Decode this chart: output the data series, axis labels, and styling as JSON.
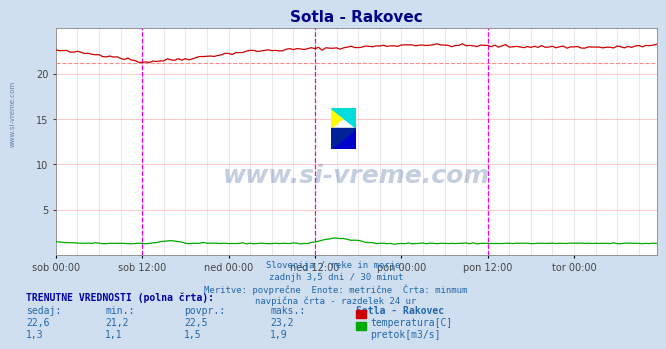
{
  "title": "Sotla - Rakovec",
  "bg_color": "#d0dff0",
  "plot_bg_color": "#ffffff",
  "x_labels": [
    "sob 00:00",
    "sob 12:00",
    "ned 00:00",
    "ned 12:00",
    "pon 00:00",
    "pon 12:00",
    "tor 00:00"
  ],
  "ylim": [
    0,
    25
  ],
  "yticks": [
    5,
    10,
    15,
    20
  ],
  "grid_color_h": "#ffb0b0",
  "grid_color_v": "#e0d0e0",
  "temp_color": "#cc0000",
  "flow_color": "#00aa00",
  "vline_color": "#ee00ee",
  "hline_color": "#ff8888",
  "temp_min": 21.2,
  "temp_max": 23.2,
  "temp_avg": 22.5,
  "temp_now": 22.6,
  "flow_min": 1.1,
  "flow_max": 1.9,
  "flow_avg": 1.5,
  "flow_now": 1.3,
  "subtitle_lines": [
    "Slovenija / reke in morje.",
    "zadnjh 3,5 dni / 30 minut",
    "Meritve: povprečne  Enote: metrične  Črta: minmum",
    "navpična črta - razdelek 24 ur"
  ],
  "footer_header": "TRENUTNE VREDNOSTI (polna črta):",
  "col_headers": [
    "sedaj:",
    "min.:",
    "povpr.:",
    "maks.:",
    "Sotla - Rakovec"
  ],
  "watermark": "www.si-vreme.com",
  "watermark_color": "#3a5f95",
  "title_color": "#000088"
}
